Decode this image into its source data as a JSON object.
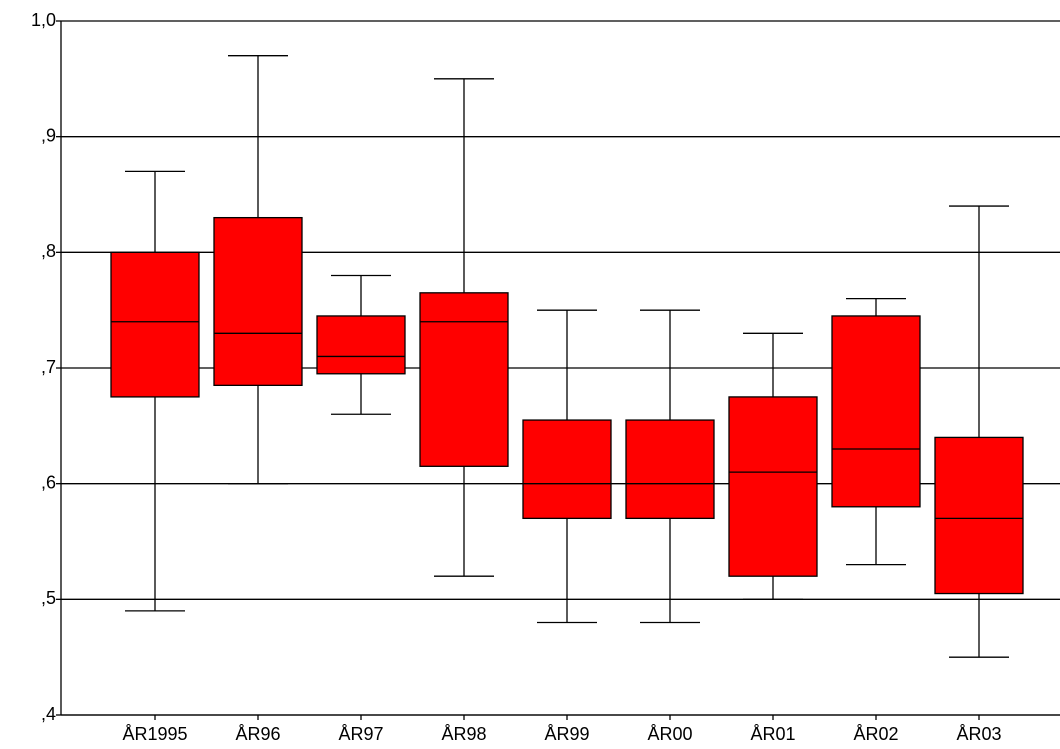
{
  "chart_data": {
    "type": "box",
    "categories": [
      "ÅR1995",
      "ÅR96",
      "ÅR97",
      "ÅR98",
      "ÅR99",
      "ÅR00",
      "ÅR01",
      "ÅR02",
      "ÅR03"
    ],
    "max": [
      0.87,
      0.97,
      0.78,
      0.95,
      0.75,
      0.75,
      0.73,
      0.76,
      0.84
    ],
    "q3": [
      0.8,
      0.83,
      0.745,
      0.765,
      0.655,
      0.655,
      0.675,
      0.745,
      0.64
    ],
    "median": [
      0.74,
      0.73,
      0.71,
      0.74,
      0.6,
      0.6,
      0.61,
      0.63,
      0.57
    ],
    "q1": [
      0.675,
      0.685,
      0.695,
      0.615,
      0.57,
      0.57,
      0.52,
      0.58,
      0.505
    ],
    "min": [
      0.49,
      0.6,
      0.66,
      0.52,
      0.48,
      0.48,
      0.5,
      0.53,
      0.45
    ],
    "color": "#ff0000",
    "ylim": [
      0.4,
      1.0
    ],
    "yticks": [
      {
        "value": 0.4,
        "label": ",4"
      },
      {
        "value": 0.5,
        "label": ",5"
      },
      {
        "value": 0.6,
        "label": ",6"
      },
      {
        "value": 0.7,
        "label": ",7"
      },
      {
        "value": 0.8,
        "label": ",8"
      },
      {
        "value": 0.9,
        "label": ",9"
      },
      {
        "value": 1.0,
        "label": "1,0"
      }
    ],
    "grid": true
  }
}
